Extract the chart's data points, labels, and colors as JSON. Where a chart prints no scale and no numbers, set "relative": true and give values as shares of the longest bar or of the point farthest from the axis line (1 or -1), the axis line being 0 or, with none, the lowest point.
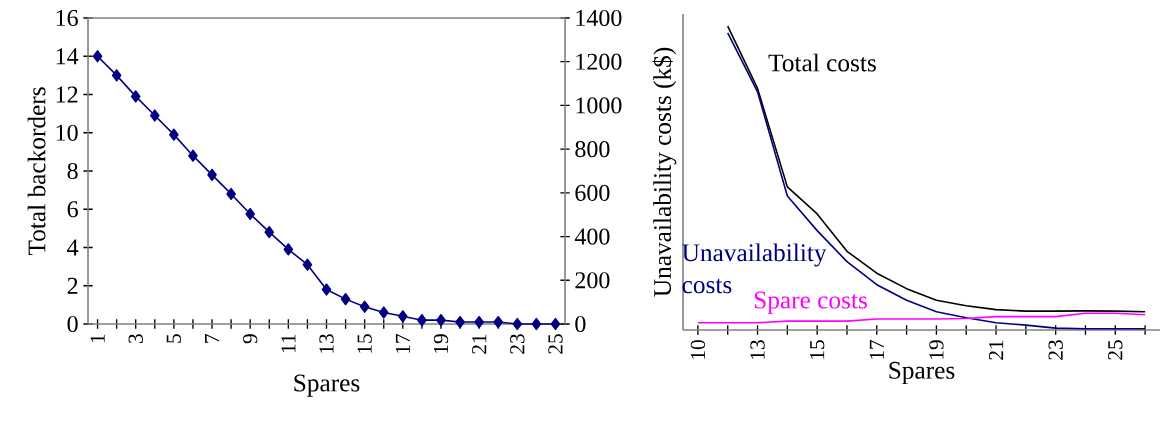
{
  "chart_data": [
    {
      "type": "line",
      "xlabel": "Spares",
      "ylabel": "Total backorders",
      "categories": [
        "1",
        null,
        "3",
        null,
        "5",
        null,
        "7",
        null,
        "9",
        null,
        "11",
        null,
        "13",
        null,
        "15",
        null,
        "17",
        null,
        "19",
        null,
        "21",
        null,
        "23",
        null,
        "25"
      ],
      "series": [
        {
          "color": "#000080",
          "values": [
            14.0,
            13.0,
            11.9,
            10.9,
            9.9,
            8.8,
            7.8,
            6.8,
            5.75,
            4.8,
            3.9,
            3.1,
            1.8,
            1.3,
            0.9,
            0.6,
            0.4,
            0.2,
            0.2,
            0.1,
            0.1,
            0.1,
            0,
            0,
            0
          ]
        }
      ],
      "ylim": [
        0,
        16
      ],
      "yticks": [
        0,
        2,
        4,
        6,
        8,
        10,
        12,
        14,
        16
      ],
      "y2lim": [
        0,
        1400
      ],
      "y2ticks": [
        0,
        200,
        400,
        600,
        800,
        1000,
        1200,
        1400
      ],
      "marker": "diamond",
      "line_style": "solid",
      "grid": false,
      "legend": false
    },
    {
      "type": "line",
      "xlabel": "Spares",
      "ylabel": "Unavailability costs (k$)",
      "categories": [
        "10",
        null,
        "13",
        null,
        "15",
        null,
        "17",
        null,
        "19",
        null,
        "21",
        null,
        "23",
        null,
        "25",
        null
      ],
      "series": [
        {
          "name": "Total costs",
          "color": "#000000",
          "values": [
            null,
            1,
            0.795,
            0.471,
            0.382,
            0.259,
            0.187,
            0.136,
            0.098,
            0.08,
            0.067,
            0.062,
            0.062,
            0.063,
            0.062,
            0.06
          ]
        },
        {
          "name": "Unavailability costs",
          "color": "#000080",
          "values": [
            null,
            0.978,
            0.784,
            0.441,
            0.327,
            0.225,
            0.149,
            0.098,
            0.06,
            0.04,
            0.024,
            0.016,
            0.006,
            0.004,
            0.004,
            0.004
          ]
        },
        {
          "name": "Spare costs",
          "color": "#ff00ff",
          "values": [
            0.024,
            0.024,
            0.024,
            0.029,
            0.029,
            0.029,
            0.036,
            0.036,
            0.036,
            0.038,
            0.044,
            0.044,
            0.044,
            0.055,
            0.055,
            0.05
          ]
        }
      ],
      "relative": true,
      "marker": "none",
      "line_style": "solid",
      "grid": false,
      "legend": false
    }
  ]
}
